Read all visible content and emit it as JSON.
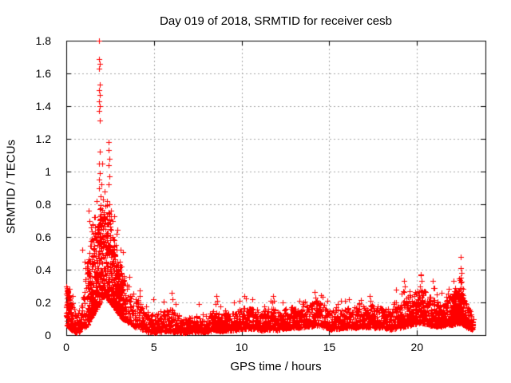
{
  "chart_data": {
    "type": "scatter",
    "title": "Day 019 of 2018, SRMTID for receiver cesb",
    "xlabel": "GPS time / hours",
    "ylabel": "SRMTID / TECUs",
    "xlim": [
      0,
      23.9
    ],
    "ylim": [
      0,
      1.8
    ],
    "xticks": [
      {
        "v": 0,
        "label": "0"
      },
      {
        "v": 5,
        "label": "5"
      },
      {
        "v": 10,
        "label": "10"
      },
      {
        "v": 15,
        "label": "15"
      },
      {
        "v": 20,
        "label": "20"
      }
    ],
    "yticks": [
      {
        "v": 0,
        "label": "0"
      },
      {
        "v": 0.2,
        "label": "0.2"
      },
      {
        "v": 0.4,
        "label": "0.4"
      },
      {
        "v": 0.6,
        "label": "0.6"
      },
      {
        "v": 0.8,
        "label": "0.8"
      },
      {
        "v": 1,
        "label": "1"
      },
      {
        "v": 1.2,
        "label": "1.2"
      },
      {
        "v": 1.4,
        "label": "1.4"
      },
      {
        "v": 1.6,
        "label": "1.6"
      },
      {
        "v": 1.8,
        "label": "1.8"
      }
    ],
    "grid": {
      "shown": true,
      "style": "dotted"
    },
    "legend": "none",
    "marker": {
      "shape": "plus",
      "size": 7,
      "color": "#ff0000"
    },
    "colors": {
      "background": "#ffffff",
      "axis": "#000000",
      "grid": "#a6a6a6",
      "text": "#000000"
    },
    "series_name": "SRMTID",
    "sampling": {
      "seed": 20180119,
      "points_per_hour": 120,
      "t_start": 0,
      "t_end": 23.2,
      "t_jitter": 0.012,
      "skew_power": 1.8,
      "flare_probability": 0.018,
      "flare_gain": 0.45,
      "envelope": [
        [
          0.0,
          0.05,
          0.3
        ],
        [
          0.2,
          0.04,
          0.26
        ],
        [
          0.4,
          0.02,
          0.18
        ],
        [
          0.6,
          0.015,
          0.14
        ],
        [
          0.8,
          0.02,
          0.16
        ],
        [
          1.0,
          0.04,
          0.28
        ],
        [
          1.2,
          0.06,
          0.45
        ],
        [
          1.4,
          0.1,
          0.58
        ],
        [
          1.6,
          0.14,
          0.66
        ],
        [
          1.8,
          0.18,
          0.76
        ],
        [
          2.0,
          0.22,
          0.82
        ],
        [
          2.2,
          0.24,
          0.8
        ],
        [
          2.4,
          0.22,
          0.76
        ],
        [
          2.6,
          0.19,
          0.68
        ],
        [
          2.8,
          0.16,
          0.56
        ],
        [
          3.0,
          0.13,
          0.48
        ],
        [
          3.2,
          0.1,
          0.4
        ],
        [
          3.5,
          0.08,
          0.3
        ],
        [
          3.8,
          0.06,
          0.26
        ],
        [
          4.1,
          0.04,
          0.22
        ],
        [
          4.4,
          0.03,
          0.15
        ],
        [
          4.7,
          0.02,
          0.12
        ],
        [
          5.0,
          0.015,
          0.13
        ],
        [
          5.5,
          0.02,
          0.15
        ],
        [
          6.0,
          0.02,
          0.16
        ],
        [
          6.5,
          0.015,
          0.12
        ],
        [
          7.0,
          0.015,
          0.11
        ],
        [
          7.5,
          0.02,
          0.12
        ],
        [
          8.0,
          0.02,
          0.1
        ],
        [
          8.4,
          0.03,
          0.15
        ],
        [
          8.8,
          0.025,
          0.13
        ],
        [
          9.2,
          0.03,
          0.14
        ],
        [
          9.6,
          0.03,
          0.15
        ],
        [
          10.0,
          0.035,
          0.17
        ],
        [
          10.4,
          0.04,
          0.18
        ],
        [
          10.8,
          0.035,
          0.16
        ],
        [
          11.2,
          0.03,
          0.15
        ],
        [
          11.6,
          0.035,
          0.17
        ],
        [
          12.0,
          0.03,
          0.15
        ],
        [
          12.4,
          0.04,
          0.16
        ],
        [
          12.8,
          0.045,
          0.17
        ],
        [
          13.2,
          0.045,
          0.16
        ],
        [
          13.6,
          0.05,
          0.17
        ],
        [
          14.0,
          0.055,
          0.2
        ],
        [
          14.3,
          0.06,
          0.22
        ],
        [
          14.6,
          0.05,
          0.18
        ],
        [
          15.0,
          0.035,
          0.15
        ],
        [
          15.5,
          0.04,
          0.16
        ],
        [
          16.0,
          0.045,
          0.17
        ],
        [
          16.5,
          0.045,
          0.18
        ],
        [
          17.0,
          0.05,
          0.19
        ],
        [
          17.5,
          0.045,
          0.18
        ],
        [
          18.0,
          0.045,
          0.18
        ],
        [
          18.5,
          0.035,
          0.15
        ],
        [
          19.0,
          0.045,
          0.19
        ],
        [
          19.4,
          0.055,
          0.23
        ],
        [
          19.8,
          0.065,
          0.26
        ],
        [
          20.2,
          0.075,
          0.29
        ],
        [
          20.6,
          0.065,
          0.26
        ],
        [
          21.0,
          0.055,
          0.22
        ],
        [
          21.4,
          0.055,
          0.2
        ],
        [
          21.8,
          0.06,
          0.23
        ],
        [
          22.2,
          0.07,
          0.27
        ],
        [
          22.5,
          0.075,
          0.28
        ],
        [
          22.8,
          0.05,
          0.19
        ],
        [
          23.0,
          0.04,
          0.15
        ],
        [
          23.2,
          0.03,
          0.13
        ]
      ],
      "bursts": [
        {
          "t0": 0.0,
          "t1": 0.35,
          "mult": 2.2
        },
        {
          "t0": 1.2,
          "t1": 3.3,
          "mult": 3.0
        },
        {
          "t0": 8.4,
          "t1": 9.2,
          "mult": 1.5
        },
        {
          "t0": 12.3,
          "t1": 13.6,
          "mult": 1.4
        },
        {
          "t0": 19.0,
          "t1": 23.2,
          "mult": 1.5
        },
        {
          "t0": 21.9,
          "t1": 22.7,
          "mult": 2.2
        }
      ],
      "outliers": [
        [
          1.87,
          1.8
        ],
        [
          1.88,
          1.69
        ],
        [
          1.9,
          1.66
        ],
        [
          1.86,
          1.63
        ],
        [
          1.89,
          1.53
        ],
        [
          1.87,
          1.5
        ],
        [
          1.91,
          1.47
        ],
        [
          1.88,
          1.43
        ],
        [
          1.91,
          1.4
        ],
        [
          1.87,
          1.37
        ],
        [
          1.92,
          1.31
        ],
        [
          1.89,
          1.12
        ],
        [
          1.86,
          1.05
        ],
        [
          1.91,
          0.99
        ],
        [
          1.88,
          0.95
        ],
        [
          2.42,
          1.18
        ],
        [
          2.4,
          1.13
        ],
        [
          2.44,
          1.08
        ],
        [
          2.41,
          1.04
        ],
        [
          2.45,
          0.97
        ],
        [
          2.39,
          0.92
        ],
        [
          1.75,
          0.82
        ],
        [
          1.85,
          0.9
        ],
        [
          1.95,
          0.85
        ],
        [
          2.02,
          0.92
        ],
        [
          2.1,
          0.83
        ],
        [
          2.2,
          0.88
        ],
        [
          2.3,
          0.82
        ],
        [
          2.45,
          0.8
        ],
        [
          2.55,
          0.76
        ],
        [
          2.62,
          0.7
        ],
        [
          1.28,
          0.76
        ],
        [
          1.33,
          0.7
        ],
        [
          1.42,
          0.66
        ],
        [
          1.5,
          0.68
        ],
        [
          1.6,
          0.72
        ],
        [
          0.92,
          0.52
        ],
        [
          1.05,
          0.45
        ],
        [
          2.85,
          0.62
        ],
        [
          3.05,
          0.45
        ],
        [
          3.15,
          0.42
        ],
        [
          3.3,
          0.36
        ],
        [
          0.03,
          0.29
        ],
        [
          0.08,
          0.26
        ],
        [
          0.15,
          0.24
        ],
        [
          4.95,
          0.22
        ],
        [
          6.0,
          0.26
        ],
        [
          6.05,
          0.22
        ],
        [
          7.55,
          0.19
        ],
        [
          8.55,
          0.24
        ],
        [
          8.6,
          0.21
        ],
        [
          9.55,
          0.2
        ],
        [
          10.15,
          0.24
        ],
        [
          10.6,
          0.22
        ],
        [
          11.8,
          0.24
        ],
        [
          11.85,
          0.21
        ],
        [
          13.3,
          0.21
        ],
        [
          13.5,
          0.2
        ],
        [
          14.2,
          0.23
        ],
        [
          14.3,
          0.21
        ],
        [
          15.9,
          0.21
        ],
        [
          16.1,
          0.22
        ],
        [
          17.3,
          0.24
        ],
        [
          17.35,
          0.21
        ],
        [
          18.8,
          0.28
        ],
        [
          19.25,
          0.33
        ],
        [
          19.3,
          0.3
        ],
        [
          19.2,
          0.27
        ],
        [
          20.2,
          0.37
        ],
        [
          20.25,
          0.33
        ],
        [
          20.15,
          0.3
        ],
        [
          20.9,
          0.33
        ],
        [
          20.95,
          0.29
        ],
        [
          21.4,
          0.26
        ],
        [
          22.1,
          0.33
        ],
        [
          22.15,
          0.29
        ],
        [
          22.5,
          0.48
        ],
        [
          22.48,
          0.41
        ],
        [
          22.52,
          0.38
        ],
        [
          22.5,
          0.35
        ],
        [
          22.47,
          0.32
        ],
        [
          22.53,
          0.29
        ],
        [
          22.49,
          0.26
        ],
        [
          22.51,
          0.23
        ],
        [
          22.55,
          0.2
        ]
      ]
    }
  }
}
